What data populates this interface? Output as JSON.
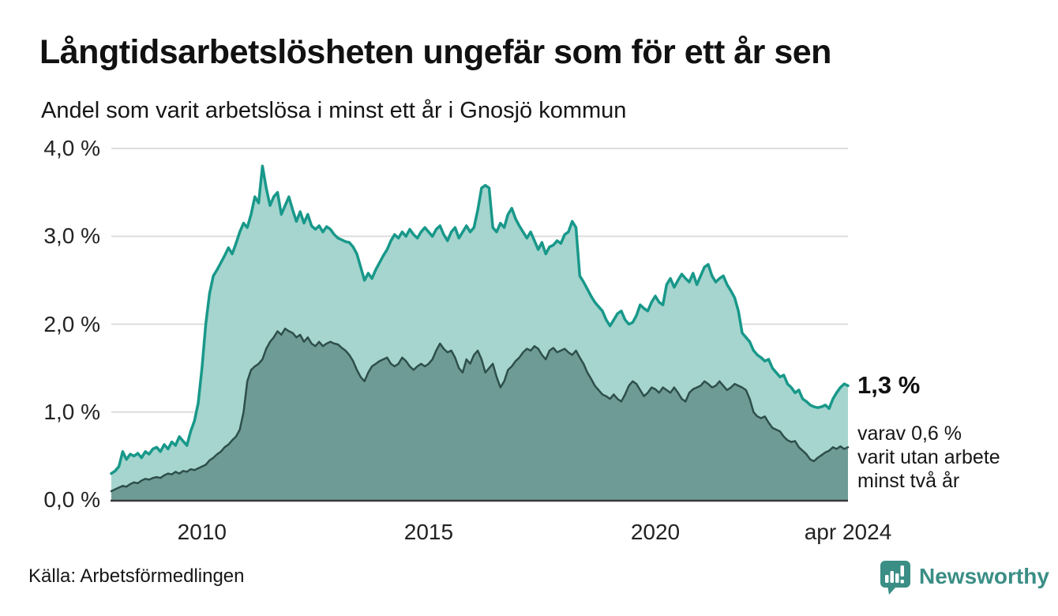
{
  "header": {
    "title": "Långtidsarbetslösheten ungefär som för ett år sen",
    "subtitle": "Andel som varit arbetslösa i minst ett år i Gnosjö kommun"
  },
  "annotations": {
    "latest_value": "1,3 %",
    "secondary_line1": "varav 0,6 %",
    "secondary_line2": "varit utan arbete",
    "secondary_line3": "minst två år"
  },
  "footer": {
    "source": "Källa: Arbetsförmedlingen",
    "brand": "Newsworthy",
    "brand_icon": "bar-chart-speech-bubble-icon"
  },
  "colors": {
    "accent_teal": "#18988a",
    "light_fill": "#a5d5ce",
    "dark_stroke": "#2e4f4b",
    "dark_fill": "#6f9b96",
    "gridline": "#dddddd",
    "baseline": "#3a3a3a",
    "brand_teal": "#3a8e85",
    "text": "#111111"
  },
  "chart_data": {
    "type": "area",
    "title": "Långtidsarbetslösheten ungefär som för ett år sen",
    "subtitle": "Andel som varit arbetslösa i minst ett år i Gnosjö kommun",
    "unit": "%",
    "x_start": 2008.0,
    "x_step_months": 1,
    "xlim": [
      2008.0,
      2024.25
    ],
    "x_axis": {
      "ticks": [
        {
          "value": 2010,
          "label": "2010"
        },
        {
          "value": 2015,
          "label": "2015"
        },
        {
          "value": 2020,
          "label": "2020"
        },
        {
          "value": 2024.25,
          "label": "apr 2024"
        }
      ]
    },
    "y_axis": {
      "ylim": [
        0,
        4.0
      ],
      "ticks": [
        {
          "value": 0,
          "label": "0,0 %"
        },
        {
          "value": 1,
          "label": "1,0 %"
        },
        {
          "value": 2,
          "label": "2,0 %"
        },
        {
          "value": 3,
          "label": "3,0 %"
        },
        {
          "value": 4,
          "label": "4,0 %"
        }
      ]
    },
    "grid": true,
    "legend": "none",
    "latest": {
      "minst_ett_ar": 1.3,
      "minst_tva_ar": 0.6,
      "period": "apr 2024"
    },
    "series": [
      {
        "name": "Arbetslösa minst ett år",
        "stroke": "#18988a",
        "fill": "#a5d5ce",
        "stroke_width": 3.5,
        "values": [
          0.3,
          0.33,
          0.38,
          0.55,
          0.46,
          0.52,
          0.5,
          0.53,
          0.48,
          0.55,
          0.52,
          0.58,
          0.6,
          0.55,
          0.63,
          0.58,
          0.66,
          0.62,
          0.72,
          0.67,
          0.62,
          0.78,
          0.9,
          1.1,
          1.5,
          2.0,
          2.35,
          2.55,
          2.62,
          2.7,
          2.78,
          2.87,
          2.8,
          2.92,
          3.05,
          3.15,
          3.1,
          3.25,
          3.45,
          3.38,
          3.8,
          3.55,
          3.35,
          3.45,
          3.5,
          3.25,
          3.35,
          3.45,
          3.3,
          3.17,
          3.28,
          3.15,
          3.25,
          3.12,
          3.08,
          3.12,
          3.05,
          3.11,
          3.08,
          3.02,
          2.98,
          2.96,
          2.94,
          2.93,
          2.88,
          2.8,
          2.65,
          2.5,
          2.58,
          2.52,
          2.62,
          2.7,
          2.78,
          2.85,
          2.95,
          3.02,
          2.98,
          3.05,
          3.0,
          3.08,
          3.02,
          2.98,
          3.05,
          3.1,
          3.05,
          3.0,
          3.08,
          3.12,
          3.02,
          2.95,
          3.05,
          3.1,
          2.98,
          3.05,
          3.12,
          3.05,
          3.1,
          3.3,
          3.55,
          3.58,
          3.55,
          3.1,
          3.05,
          3.15,
          3.1,
          3.25,
          3.32,
          3.2,
          3.12,
          3.05,
          2.98,
          3.05,
          2.95,
          2.85,
          2.93,
          2.8,
          2.88,
          2.9,
          2.95,
          2.92,
          3.02,
          3.05,
          3.17,
          3.1,
          2.55,
          2.48,
          2.4,
          2.32,
          2.25,
          2.2,
          2.15,
          2.05,
          1.98,
          2.05,
          2.12,
          2.15,
          2.05,
          2.0,
          2.02,
          2.1,
          2.22,
          2.18,
          2.15,
          2.25,
          2.32,
          2.25,
          2.22,
          2.45,
          2.52,
          2.42,
          2.5,
          2.57,
          2.52,
          2.48,
          2.58,
          2.45,
          2.55,
          2.65,
          2.68,
          2.55,
          2.48,
          2.52,
          2.55,
          2.45,
          2.38,
          2.3,
          2.15,
          1.9,
          1.85,
          1.8,
          1.7,
          1.65,
          1.62,
          1.58,
          1.6,
          1.5,
          1.45,
          1.4,
          1.42,
          1.32,
          1.28,
          1.22,
          1.25,
          1.15,
          1.12,
          1.08,
          1.06,
          1.05,
          1.06,
          1.08,
          1.04,
          1.15,
          1.22,
          1.28,
          1.32,
          1.3
        ]
      },
      {
        "name": "Varav arbetslösa minst två år",
        "stroke": "#2e4f4b",
        "fill": "#6f9b96",
        "stroke_width": 2.5,
        "values": [
          0.1,
          0.12,
          0.14,
          0.16,
          0.15,
          0.18,
          0.2,
          0.19,
          0.22,
          0.24,
          0.23,
          0.25,
          0.26,
          0.25,
          0.28,
          0.3,
          0.29,
          0.32,
          0.3,
          0.33,
          0.32,
          0.35,
          0.34,
          0.36,
          0.38,
          0.4,
          0.45,
          0.48,
          0.52,
          0.55,
          0.6,
          0.63,
          0.68,
          0.72,
          0.8,
          1.0,
          1.35,
          1.48,
          1.52,
          1.55,
          1.6,
          1.72,
          1.8,
          1.85,
          1.92,
          1.88,
          1.95,
          1.92,
          1.9,
          1.85,
          1.88,
          1.8,
          1.85,
          1.78,
          1.75,
          1.8,
          1.75,
          1.78,
          1.8,
          1.78,
          1.77,
          1.73,
          1.7,
          1.65,
          1.58,
          1.48,
          1.4,
          1.35,
          1.45,
          1.52,
          1.55,
          1.58,
          1.6,
          1.62,
          1.55,
          1.52,
          1.55,
          1.62,
          1.58,
          1.52,
          1.48,
          1.52,
          1.55,
          1.52,
          1.55,
          1.6,
          1.7,
          1.78,
          1.72,
          1.68,
          1.7,
          1.62,
          1.5,
          1.45,
          1.6,
          1.55,
          1.65,
          1.7,
          1.6,
          1.45,
          1.5,
          1.55,
          1.4,
          1.28,
          1.35,
          1.48,
          1.52,
          1.58,
          1.62,
          1.68,
          1.72,
          1.7,
          1.75,
          1.72,
          1.65,
          1.6,
          1.7,
          1.73,
          1.68,
          1.7,
          1.72,
          1.68,
          1.65,
          1.7,
          1.62,
          1.55,
          1.45,
          1.38,
          1.3,
          1.25,
          1.2,
          1.18,
          1.15,
          1.2,
          1.15,
          1.12,
          1.2,
          1.3,
          1.35,
          1.32,
          1.25,
          1.18,
          1.22,
          1.28,
          1.26,
          1.22,
          1.28,
          1.25,
          1.22,
          1.28,
          1.22,
          1.15,
          1.12,
          1.22,
          1.26,
          1.28,
          1.3,
          1.35,
          1.32,
          1.28,
          1.3,
          1.35,
          1.3,
          1.25,
          1.28,
          1.32,
          1.3,
          1.28,
          1.25,
          1.15,
          1.0,
          0.95,
          0.93,
          0.95,
          0.88,
          0.82,
          0.8,
          0.78,
          0.72,
          0.68,
          0.66,
          0.67,
          0.6,
          0.56,
          0.52,
          0.46,
          0.44,
          0.48,
          0.51,
          0.54,
          0.56,
          0.6,
          0.58,
          0.61,
          0.58,
          0.6
        ]
      }
    ]
  }
}
